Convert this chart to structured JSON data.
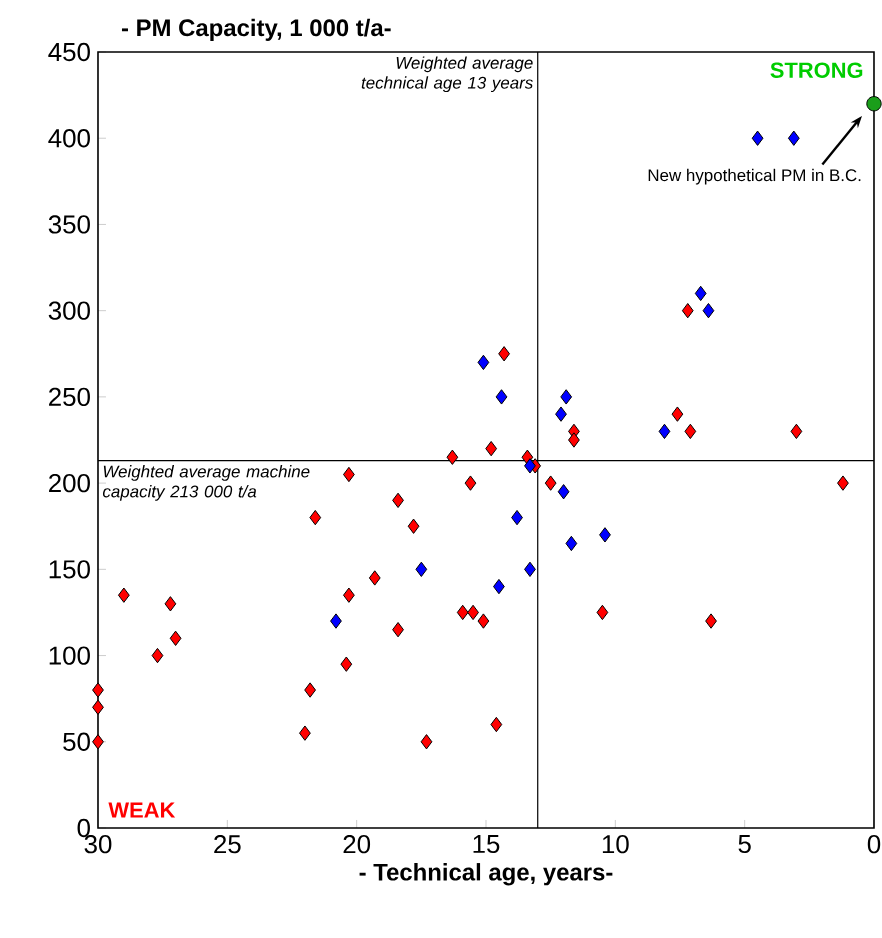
{
  "chart_data": {
    "type": "scatter",
    "title": "- PM Capacity, 1 000 t/a-",
    "xlabel": "- Technical age, years-",
    "xlim": [
      30,
      0
    ],
    "xticks": [
      30,
      25,
      20,
      15,
      10,
      5,
      0
    ],
    "ylim": [
      0,
      450
    ],
    "yticks": [
      0,
      50,
      100,
      150,
      200,
      250,
      300,
      350,
      400,
      450
    ],
    "grid": false,
    "marker": "diamond",
    "series": [
      {
        "color": "#ff0000",
        "x": [
          30,
          30,
          30,
          29,
          27.7,
          27.2,
          27,
          22,
          21.8,
          21.6,
          20.4,
          20.3,
          20.3,
          19.3,
          18.4,
          18.4,
          17.8,
          17.3,
          16.3,
          15.6,
          14.3,
          14.8,
          13.4,
          13.1,
          15.9,
          15.5,
          15.1,
          14.6,
          12.5,
          11.6,
          11.6,
          10.5,
          7.6,
          7.1,
          6.3,
          3.0,
          1.2,
          7.2
        ],
        "values": [
          50,
          70,
          80,
          135,
          100,
          130,
          110,
          55,
          80,
          180,
          95,
          205,
          135,
          145,
          190,
          115,
          175,
          50,
          215,
          200,
          275,
          220,
          215,
          210,
          125,
          125,
          120,
          60,
          200,
          230,
          225,
          125,
          240,
          230,
          120,
          230,
          200,
          300
        ]
      },
      {
        "color": "#0000ff",
        "x": [
          20.8,
          17.5,
          15.1,
          14.4,
          13.3,
          13.8,
          14.5,
          13.3,
          12.0,
          11.9,
          12.1,
          11.7,
          10.4,
          8.1,
          6.7,
          6.4,
          4.5,
          3.1
        ],
        "values": [
          120,
          150,
          270,
          250,
          210,
          180,
          140,
          150,
          195,
          250,
          240,
          165,
          170,
          230,
          310,
          300,
          400,
          400
        ]
      },
      {
        "color": "#1a9e1a",
        "marker": "circle",
        "x": [
          0
        ],
        "values": [
          420
        ]
      }
    ],
    "ref_lines": [
      {
        "axis": "x",
        "value": 13,
        "label": "Weighted average technical age 13 years"
      },
      {
        "axis": "y",
        "value": 213,
        "label": "Weighted average machine capacity 213 000 t/a"
      }
    ],
    "annotations": [
      "STRONG",
      "WEAK",
      "New hypothetical PM in B.C."
    ]
  }
}
